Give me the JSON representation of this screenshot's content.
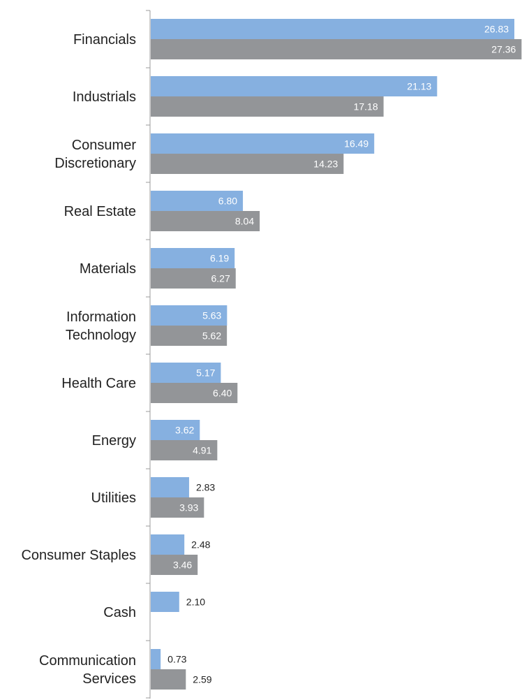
{
  "colors": {
    "series_a": "#86b0e0",
    "series_b": "#939598",
    "axis": "#9b9b9b"
  },
  "chart_data": {
    "type": "bar",
    "orientation": "horizontal",
    "title": "",
    "xlabel": "",
    "ylabel": "",
    "xlim": [
      0,
      28
    ],
    "grid": false,
    "legend": "none",
    "categories": [
      [
        "Financials"
      ],
      [
        "Industrials"
      ],
      [
        "Consumer",
        "Discretionary"
      ],
      [
        "Real Estate"
      ],
      [
        "Materials"
      ],
      [
        "Information",
        "Technology"
      ],
      [
        "Health Care"
      ],
      [
        "Energy"
      ],
      [
        "Utilities"
      ],
      [
        "Consumer Staples"
      ],
      [
        "Cash"
      ],
      [
        "Communication",
        "Services"
      ]
    ],
    "series": [
      {
        "values": [
          26.83,
          21.13,
          16.49,
          6.8,
          6.19,
          5.63,
          5.17,
          3.62,
          2.83,
          2.48,
          2.1,
          0.73
        ],
        "labels": [
          "26.83",
          "21.13",
          "16.49",
          "6.80",
          "6.19",
          "5.63",
          "5.17",
          "3.62",
          "2.83",
          "2.48",
          "2.10",
          "0.73"
        ]
      },
      {
        "values": [
          27.36,
          17.18,
          14.23,
          8.04,
          6.27,
          5.62,
          6.4,
          4.91,
          3.93,
          3.46,
          null,
          2.59
        ],
        "labels": [
          "27.36",
          "17.18",
          "14.23",
          "8.04",
          "6.27",
          "5.62",
          "6.40",
          "4.91",
          "3.93",
          "3.46",
          null,
          "2.59"
        ]
      }
    ]
  }
}
